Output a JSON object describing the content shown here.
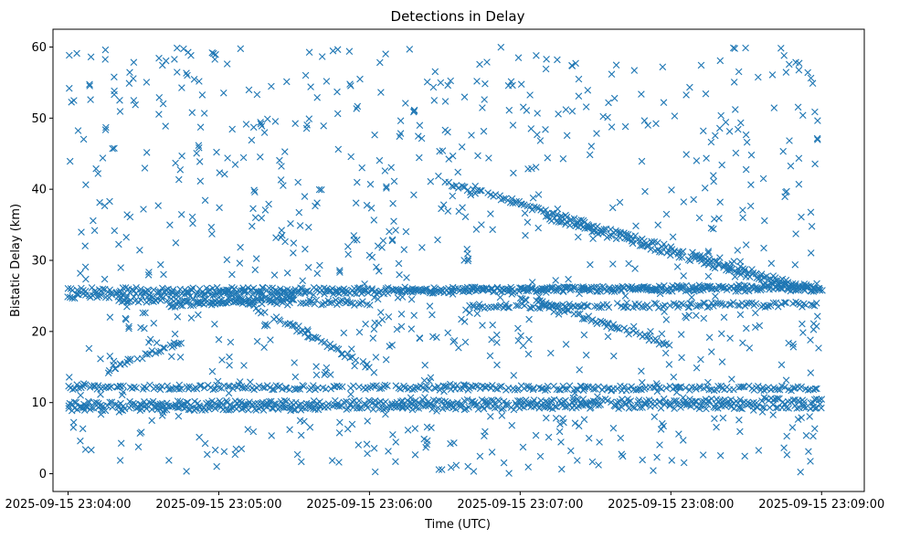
{
  "chart_data": {
    "type": "scatter",
    "title": "Detections in Delay",
    "xlabel": "Time (UTC)",
    "ylabel": "Bistatic Delay (km)",
    "marker": "x",
    "color": "#1f77b4",
    "grid": false,
    "legend": "none",
    "xlim": [
      "2025-09-15 23:03:54",
      "2025-09-15 23:09:17"
    ],
    "ylim": [
      -2.5,
      62.5
    ],
    "x_ticks": [
      "2025-09-15 23:04:00",
      "2025-09-15 23:05:00",
      "2025-09-15 23:06:00",
      "2025-09-15 23:07:00",
      "2025-09-15 23:08:00",
      "2025-09-15 23:09:00"
    ],
    "y_ticks": [
      0,
      10,
      20,
      30,
      40,
      50,
      60
    ],
    "time_range": [
      "2025-09-15 23:04:00",
      "2025-09-15 23:09:00"
    ],
    "tracks": [
      {
        "start": [
          "2025-09-15 23:04:00",
          25.8
        ],
        "end": [
          "2025-09-15 23:09:00",
          26.0
        ]
      },
      {
        "start": [
          "2025-09-15 23:04:00",
          25.0
        ],
        "end": [
          "2025-09-15 23:09:00",
          26.4
        ]
      },
      {
        "start": [
          "2025-09-15 23:04:20",
          24.5
        ],
        "end": [
          "2025-09-15 23:06:00",
          24.0
        ]
      },
      {
        "start": [
          "2025-09-15 23:04:40",
          23.5
        ],
        "end": [
          "2025-09-15 23:05:30",
          25.0
        ]
      },
      {
        "start": [
          "2025-09-15 23:04:00",
          12.2
        ],
        "end": [
          "2025-09-15 23:09:00",
          12.0
        ]
      },
      {
        "start": [
          "2025-09-15 23:04:00",
          9.8
        ],
        "end": [
          "2025-09-15 23:09:00",
          10.3
        ]
      },
      {
        "start": [
          "2025-09-15 23:04:00",
          9.2
        ],
        "end": [
          "2025-09-15 23:09:00",
          9.5
        ]
      },
      {
        "start": [
          "2025-09-15 23:04:18",
          15.0
        ],
        "end": [
          "2025-09-15 23:04:45",
          18.5
        ]
      },
      {
        "start": [
          "2025-09-15 23:05:00",
          26.0
        ],
        "end": [
          "2025-09-15 23:06:00",
          15.0
        ]
      },
      {
        "start": [
          "2025-09-15 23:06:30",
          41.0
        ],
        "end": [
          "2025-09-15 23:09:00",
          25.5
        ]
      },
      {
        "start": [
          "2025-09-15 23:07:00",
          25.0
        ],
        "end": [
          "2025-09-15 23:08:00",
          18.0
        ]
      },
      {
        "start": [
          "2025-09-15 23:07:10",
          36.0
        ],
        "end": [
          "2025-09-15 23:08:50",
          26.0
        ]
      },
      {
        "start": [
          "2025-09-15 23:06:40",
          23.5
        ],
        "end": [
          "2025-09-15 23:09:00",
          23.8
        ]
      }
    ],
    "clutter": {
      "count": 900,
      "y_range": [
        0,
        60
      ]
    }
  }
}
